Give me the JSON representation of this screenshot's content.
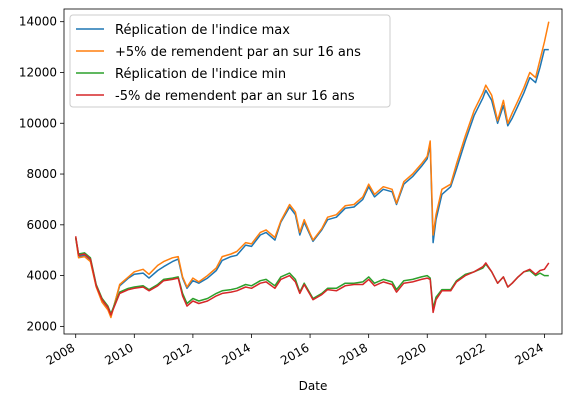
{
  "chart_data": {
    "type": "line",
    "title": "",
    "xlabel": "Date",
    "ylabel": "",
    "xlim": [
      2007.6,
      2024.6
    ],
    "ylim": [
      1700,
      14500
    ],
    "x_ticks": [
      2008,
      2010,
      2012,
      2014,
      2016,
      2018,
      2020,
      2022,
      2024
    ],
    "x_tick_labels": [
      "2008",
      "2010",
      "2012",
      "2014",
      "2016",
      "2018",
      "2020",
      "2022",
      "2024"
    ],
    "y_ticks": [
      2000,
      4000,
      6000,
      8000,
      10000,
      12000,
      14000
    ],
    "y_tick_labels": [
      "2000",
      "4000",
      "6000",
      "8000",
      "10000",
      "12000",
      "14000"
    ],
    "grid": false,
    "legend_position": "upper-left",
    "series": [
      {
        "name": "Réplication de l'indice max",
        "color": "#1f77b4",
        "x": [
          2008.0,
          2008.1,
          2008.3,
          2008.5,
          2008.7,
          2008.9,
          2009.1,
          2009.2,
          2009.5,
          2009.8,
          2010.0,
          2010.3,
          2010.5,
          2010.8,
          2011.0,
          2011.3,
          2011.5,
          2011.65,
          2011.8,
          2012.0,
          2012.2,
          2012.5,
          2012.8,
          2013.0,
          2013.3,
          2013.5,
          2013.8,
          2014.0,
          2014.3,
          2014.5,
          2014.8,
          2015.0,
          2015.3,
          2015.5,
          2015.65,
          2015.8,
          2016.0,
          2016.1,
          2016.4,
          2016.6,
          2016.9,
          2017.2,
          2017.5,
          2017.8,
          2018.0,
          2018.2,
          2018.5,
          2018.8,
          2018.95,
          2019.2,
          2019.5,
          2019.8,
          2020.0,
          2020.1,
          2020.2,
          2020.3,
          2020.5,
          2020.8,
          2021.0,
          2021.3,
          2021.6,
          2021.9,
          2022.0,
          2022.2,
          2022.4,
          2022.6,
          2022.75,
          2022.9,
          2023.1,
          2023.3,
          2023.5,
          2023.7,
          2023.85,
          2024.0,
          2024.15
        ],
        "values": [
          5500,
          4750,
          4800,
          4600,
          3600,
          3000,
          2700,
          2400,
          3600,
          3900,
          4050,
          4100,
          3900,
          4200,
          4350,
          4550,
          4650,
          3900,
          3500,
          3800,
          3700,
          3900,
          4200,
          4600,
          4750,
          4800,
          5200,
          5150,
          5600,
          5700,
          5400,
          6100,
          6700,
          6400,
          5600,
          6100,
          5600,
          5350,
          5800,
          6200,
          6300,
          6650,
          6700,
          7000,
          7500,
          7100,
          7400,
          7300,
          6800,
          7600,
          7900,
          8300,
          8600,
          9150,
          5300,
          6200,
          7200,
          7500,
          8200,
          9300,
          10300,
          11000,
          11300,
          10900,
          10000,
          10700,
          9900,
          10200,
          10700,
          11200,
          11800,
          11600,
          12200,
          12900,
          12900
        ]
      },
      {
        "name": "+5% de remendent par an sur 16 ans",
        "color": "#ff7f0e",
        "x": [
          2008.0,
          2008.1,
          2008.3,
          2008.5,
          2008.7,
          2008.9,
          2009.1,
          2009.2,
          2009.5,
          2009.8,
          2010.0,
          2010.3,
          2010.5,
          2010.8,
          2011.0,
          2011.3,
          2011.5,
          2011.65,
          2011.8,
          2012.0,
          2012.2,
          2012.5,
          2012.8,
          2013.0,
          2013.3,
          2013.5,
          2013.8,
          2014.0,
          2014.3,
          2014.5,
          2014.8,
          2015.0,
          2015.3,
          2015.5,
          2015.65,
          2015.8,
          2016.0,
          2016.1,
          2016.4,
          2016.6,
          2016.9,
          2017.2,
          2017.5,
          2017.8,
          2018.0,
          2018.2,
          2018.5,
          2018.8,
          2018.95,
          2019.2,
          2019.5,
          2019.8,
          2020.0,
          2020.1,
          2020.2,
          2020.3,
          2020.5,
          2020.8,
          2021.0,
          2021.3,
          2021.6,
          2021.9,
          2022.0,
          2022.2,
          2022.4,
          2022.6,
          2022.75,
          2022.9,
          2023.1,
          2023.3,
          2023.5,
          2023.7,
          2023.85,
          2024.0,
          2024.15
        ],
        "values": [
          5500,
          4700,
          4750,
          4550,
          3550,
          2950,
          2650,
          2350,
          3650,
          3950,
          4150,
          4250,
          4050,
          4400,
          4550,
          4700,
          4750,
          3950,
          3550,
          3900,
          3750,
          4000,
          4300,
          4750,
          4850,
          4950,
          5300,
          5250,
          5700,
          5800,
          5500,
          6150,
          6800,
          6500,
          5700,
          6200,
          5650,
          5400,
          5850,
          6300,
          6400,
          6750,
          6800,
          7100,
          7600,
          7200,
          7500,
          7400,
          6850,
          7700,
          8000,
          8400,
          8700,
          9300,
          5600,
          6400,
          7400,
          7600,
          8400,
          9500,
          10500,
          11200,
          11500,
          11100,
          10100,
          10900,
          10000,
          10400,
          10900,
          11400,
          12000,
          11800,
          12500,
          13200,
          14000
        ]
      },
      {
        "name": "Réplication de l'indice min",
        "color": "#2ca02c",
        "x": [
          2008.0,
          2008.1,
          2008.3,
          2008.5,
          2008.7,
          2008.9,
          2009.1,
          2009.2,
          2009.5,
          2009.8,
          2010.0,
          2010.3,
          2010.5,
          2010.8,
          2011.0,
          2011.3,
          2011.5,
          2011.65,
          2011.8,
          2012.0,
          2012.2,
          2012.5,
          2012.8,
          2013.0,
          2013.3,
          2013.5,
          2013.8,
          2014.0,
          2014.3,
          2014.5,
          2014.8,
          2015.0,
          2015.3,
          2015.5,
          2015.65,
          2015.8,
          2016.0,
          2016.1,
          2016.4,
          2016.6,
          2016.9,
          2017.2,
          2017.5,
          2017.8,
          2018.0,
          2018.2,
          2018.5,
          2018.8,
          2018.95,
          2019.2,
          2019.5,
          2019.8,
          2020.0,
          2020.1,
          2020.2,
          2020.3,
          2020.5,
          2020.8,
          2021.0,
          2021.3,
          2021.6,
          2021.9,
          2022.0,
          2022.2,
          2022.4,
          2022.6,
          2022.75,
          2022.9,
          2023.1,
          2023.3,
          2023.5,
          2023.7,
          2023.85,
          2024.0,
          2024.15
        ],
        "values": [
          5500,
          4850,
          4900,
          4700,
          3650,
          3100,
          2800,
          2500,
          3350,
          3500,
          3550,
          3600,
          3450,
          3650,
          3850,
          3900,
          3950,
          3300,
          2900,
          3100,
          3000,
          3100,
          3300,
          3400,
          3450,
          3500,
          3650,
          3600,
          3800,
          3850,
          3600,
          3950,
          4100,
          3850,
          3350,
          3700,
          3300,
          3100,
          3300,
          3500,
          3500,
          3700,
          3700,
          3750,
          3950,
          3700,
          3850,
          3750,
          3450,
          3800,
          3850,
          3950,
          4000,
          3900,
          2700,
          3150,
          3450,
          3450,
          3800,
          4050,
          4150,
          4300,
          4450,
          4150,
          3700,
          3950,
          3550,
          3700,
          3950,
          4150,
          4200,
          4000,
          4100,
          4000,
          4000
        ]
      },
      {
        "name": "-5% de remendent par an sur 16 ans",
        "color": "#d62728",
        "x": [
          2008.0,
          2008.1,
          2008.3,
          2008.5,
          2008.7,
          2008.9,
          2009.1,
          2009.2,
          2009.5,
          2009.8,
          2010.0,
          2010.3,
          2010.5,
          2010.8,
          2011.0,
          2011.3,
          2011.5,
          2011.65,
          2011.8,
          2012.0,
          2012.2,
          2012.5,
          2012.8,
          2013.0,
          2013.3,
          2013.5,
          2013.8,
          2014.0,
          2014.3,
          2014.5,
          2014.8,
          2015.0,
          2015.3,
          2015.5,
          2015.65,
          2015.8,
          2016.0,
          2016.1,
          2016.4,
          2016.6,
          2016.9,
          2017.2,
          2017.5,
          2017.8,
          2018.0,
          2018.2,
          2018.5,
          2018.8,
          2018.95,
          2019.2,
          2019.5,
          2019.8,
          2020.0,
          2020.1,
          2020.2,
          2020.3,
          2020.5,
          2020.8,
          2021.0,
          2021.3,
          2021.6,
          2021.9,
          2022.0,
          2022.2,
          2022.4,
          2022.6,
          2022.75,
          2022.9,
          2023.1,
          2023.3,
          2023.5,
          2023.7,
          2023.85,
          2024.0,
          2024.15
        ],
        "values": [
          5550,
          4800,
          4850,
          4650,
          3600,
          3050,
          2750,
          2450,
          3300,
          3450,
          3500,
          3550,
          3400,
          3600,
          3800,
          3850,
          3900,
          3200,
          2800,
          3000,
          2900,
          3000,
          3200,
          3300,
          3350,
          3400,
          3550,
          3500,
          3700,
          3750,
          3500,
          3850,
          4000,
          3750,
          3300,
          3650,
          3250,
          3050,
          3250,
          3450,
          3400,
          3600,
          3650,
          3650,
          3850,
          3600,
          3750,
          3650,
          3350,
          3700,
          3750,
          3850,
          3900,
          3850,
          2550,
          3050,
          3400,
          3400,
          3750,
          4000,
          4150,
          4350,
          4500,
          4150,
          3700,
          3950,
          3550,
          3700,
          3950,
          4150,
          4250,
          4050,
          4200,
          4250,
          4500
        ]
      }
    ]
  }
}
